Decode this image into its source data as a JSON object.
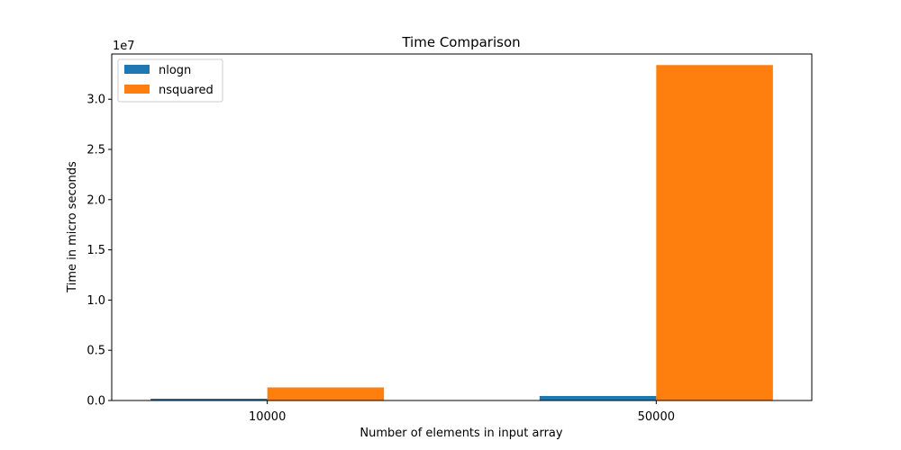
{
  "chart_data": {
    "type": "bar",
    "title": "Time Comparison",
    "xlabel": "Number of elements in input array",
    "ylabel": "Time in micro seconds",
    "y_offset_text": "1e7",
    "y_scale": 10000000,
    "categories": [
      "10000",
      "50000"
    ],
    "series": [
      {
        "name": "nlogn",
        "color": "#1f77b4",
        "values": [
          180000,
          450000
        ]
      },
      {
        "name": "nsquared",
        "color": "#ff7f0e",
        "values": [
          1300000,
          33400000
        ]
      }
    ],
    "ylim": [
      0,
      34500000
    ],
    "yticks": [
      0,
      5000000,
      10000000,
      15000000,
      20000000,
      25000000,
      30000000
    ],
    "ytick_labels": [
      "0.0",
      "0.5",
      "1.0",
      "1.5",
      "2.0",
      "2.5",
      "3.0"
    ],
    "grid": false,
    "legend_position": "upper left"
  }
}
